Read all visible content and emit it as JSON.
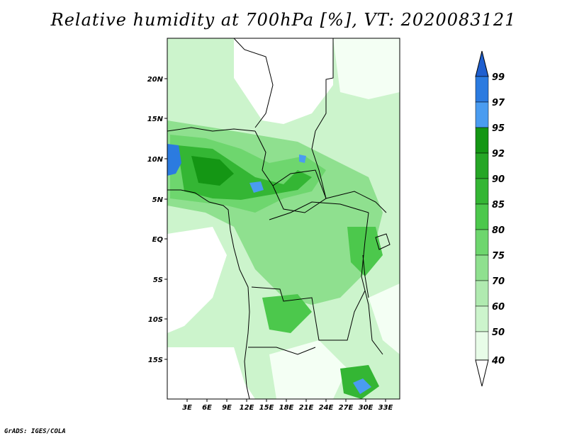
{
  "title": "Relative humidity at 700hPa [%], VT: 2020083121",
  "footer": "GrADS: IGES/COLA",
  "map": {
    "lat_labels": [
      "20N",
      "15N",
      "10N",
      "5N",
      "EQ",
      "5S",
      "10S",
      "15S"
    ],
    "lon_labels": [
      "3E",
      "6E",
      "9E",
      "12E",
      "15E",
      "18E",
      "21E",
      "24E",
      "27E",
      "30E",
      "33E"
    ]
  },
  "colorbar": {
    "levels": [
      "99",
      "97",
      "95",
      "92",
      "90",
      "85",
      "80",
      "75",
      "70",
      "60",
      "50",
      "40"
    ],
    "colors": [
      "#1f5fcf",
      "#2b7be0",
      "#4a9cf0",
      "#149614",
      "#26a626",
      "#34b634",
      "#4cc84c",
      "#6ed66e",
      "#8fe08f",
      "#b0eab0",
      "#ccf4cc",
      "#e8fce8"
    ]
  }
}
